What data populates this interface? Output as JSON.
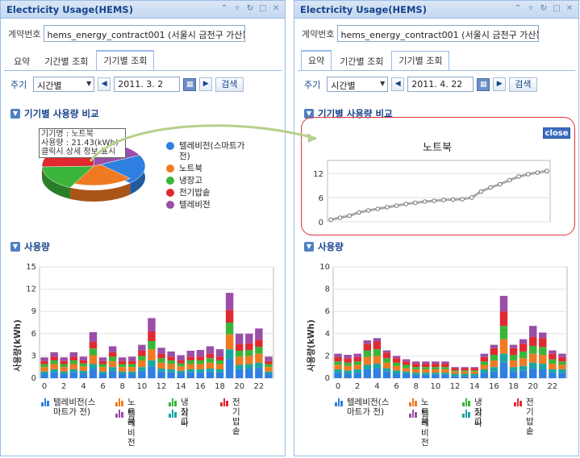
{
  "colors": {
    "tv_smart": "#2f80e0",
    "notebook": "#f07a22",
    "fridge": "#3ab53a",
    "rice": "#e02930",
    "tv": "#9a4ea8",
    "etc": "#1aa7a2"
  },
  "left": {
    "title": "Electricity Usage(HEMS)",
    "title_icons": [
      "pin-icon",
      "collapse-icon",
      "refresh-icon",
      "maximize-icon",
      "close-icon"
    ],
    "contract_label": "계약번호",
    "contract_value": "hems_energy_contract001 (서울시 금천구 가산동 3",
    "tabs": [
      "요약",
      "기간별 조회",
      "기기별 조회"
    ],
    "active_tab": 2,
    "period_label": "주기",
    "period_value": "시간별",
    "date": "2011. 3. 2",
    "search": "검색",
    "section1": "기기별 사용량 비교",
    "tooltip": [
      "기기명 : 노트북",
      "사용량 : 21.43(kWh)",
      "클릭시 상세 정보 표시"
    ],
    "pie_legend": [
      "텔레비전(스마트가 전)",
      "노트북",
      "냉장고",
      "전기밥솥",
      "텔레비전"
    ],
    "section2": "사용량"
  },
  "right": {
    "title": "Electricity Usage(HEMS)",
    "contract_label": "계약번호",
    "contract_value": "hems_energy_contract001 (서울시 금천구 가산동 3",
    "tabs": [
      "요약",
      "기간별 조회",
      "기기별 조회"
    ],
    "active_tab": 0,
    "period_label": "주기",
    "period_value": "시간별",
    "date": "2011. 4. 22",
    "search": "검색",
    "section1": "기기별 사용량 비교",
    "popup_title": "노트북",
    "close": "close",
    "section2": "사용량"
  },
  "chart_data": [
    {
      "type": "pie",
      "title": "",
      "categories": [
        "텔레비전(스마트가 전)",
        "노트북",
        "냉장고",
        "전기밥솥",
        "텔레비전"
      ],
      "values": [
        20,
        20,
        17,
        26,
        17
      ]
    },
    {
      "type": "bar",
      "title": "",
      "ylabel": "사용량(kWh)",
      "ylim": [
        0,
        15
      ],
      "yticks": [
        0,
        3,
        6,
        9,
        12,
        15
      ],
      "x": [
        0,
        1,
        2,
        3,
        4,
        5,
        6,
        7,
        8,
        9,
        10,
        11,
        12,
        13,
        14,
        15,
        16,
        17,
        18,
        19,
        20,
        21,
        22,
        23
      ],
      "xticks": [
        0,
        2,
        4,
        6,
        8,
        10,
        12,
        14,
        16,
        18,
        20,
        22
      ],
      "series": [
        {
          "name": "텔레비전(스마트가 전)",
          "values": [
            0.6,
            0.8,
            0.6,
            0.8,
            0.7,
            1.3,
            0.6,
            1.0,
            0.6,
            0.6,
            1.0,
            1.6,
            0.9,
            0.8,
            0.7,
            0.8,
            0.8,
            0.9,
            0.8,
            2.6,
            1.2,
            1.3,
            1.4,
            0.6
          ]
        },
        {
          "name": "기타",
          "values": [
            0.3,
            0.4,
            0.3,
            0.4,
            0.3,
            0.6,
            0.3,
            0.5,
            0.3,
            0.3,
            0.5,
            0.8,
            0.4,
            0.4,
            0.3,
            0.4,
            0.4,
            0.4,
            0.4,
            1.3,
            0.6,
            0.6,
            0.7,
            0.3
          ]
        },
        {
          "name": "노트북",
          "values": [
            0.6,
            0.7,
            0.6,
            0.7,
            0.6,
            1.2,
            0.6,
            0.8,
            0.6,
            0.6,
            0.9,
            1.5,
            0.8,
            0.7,
            0.6,
            0.7,
            0.7,
            0.8,
            0.7,
            2.0,
            1.1,
            1.1,
            1.2,
            0.6
          ]
        },
        {
          "name": "냉장고",
          "values": [
            0.4,
            0.5,
            0.4,
            0.5,
            0.4,
            0.9,
            0.4,
            0.6,
            0.4,
            0.4,
            0.6,
            1.1,
            0.6,
            0.5,
            0.4,
            0.5,
            0.5,
            0.6,
            0.5,
            1.6,
            0.8,
            0.8,
            0.9,
            0.4
          ]
        },
        {
          "name": "전기밥솥",
          "values": [
            0.4,
            0.5,
            0.4,
            0.5,
            0.4,
            0.9,
            0.4,
            0.6,
            0.4,
            0.4,
            0.7,
            1.3,
            0.6,
            0.5,
            0.4,
            0.5,
            0.5,
            0.6,
            0.5,
            1.7,
            0.9,
            0.9,
            1.0,
            0.4
          ]
        },
        {
          "name": "텔레비전",
          "values": [
            0.5,
            0.6,
            0.5,
            0.6,
            0.5,
            1.3,
            0.5,
            0.8,
            0.5,
            0.6,
            0.8,
            1.8,
            0.8,
            0.7,
            0.7,
            0.8,
            0.9,
            1.0,
            1.0,
            2.3,
            1.4,
            1.3,
            1.5,
            0.6
          ]
        }
      ],
      "legend": [
        "텔레비전(스마트가 전)",
        "노트북",
        "냉장고",
        "전기밥솥",
        "텔레비전",
        "기타"
      ]
    },
    {
      "type": "line",
      "title": "노트북",
      "ylim": [
        0,
        14
      ],
      "yticks": [
        0,
        6,
        12
      ],
      "x": [
        0,
        1,
        2,
        3,
        4,
        5,
        6,
        7,
        8,
        9,
        10,
        11,
        12,
        13,
        14,
        15,
        16,
        17,
        18,
        19,
        20,
        21,
        22,
        23
      ],
      "values": [
        0.5,
        1.0,
        1.5,
        2.3,
        2.8,
        3.2,
        3.6,
        4.0,
        4.4,
        4.7,
        5.0,
        5.2,
        5.4,
        5.5,
        5.6,
        6.0,
        7.5,
        8.5,
        9.3,
        10.3,
        11.2,
        11.8,
        12.2,
        12.6
      ]
    },
    {
      "type": "bar",
      "title": "",
      "ylabel": "사용량(kWh)",
      "ylim": [
        0,
        10
      ],
      "yticks": [
        0,
        2,
        4,
        6,
        8,
        10
      ],
      "x": [
        0,
        1,
        2,
        3,
        4,
        5,
        6,
        7,
        8,
        9,
        10,
        11,
        12,
        13,
        14,
        15,
        16,
        17,
        18,
        19,
        20,
        21,
        22,
        23
      ],
      "xticks": [
        0,
        2,
        4,
        6,
        8,
        10,
        12,
        14,
        16,
        18,
        20,
        22
      ],
      "series": [
        {
          "name": "텔레비전(스마트가 전)",
          "values": [
            0.5,
            0.4,
            0.5,
            0.8,
            0.9,
            0.6,
            0.4,
            0.4,
            0.3,
            0.3,
            0.3,
            0.3,
            0.2,
            0.2,
            0.2,
            0.5,
            0.6,
            1.4,
            0.6,
            0.7,
            0.9,
            0.8,
            0.5,
            0.5
          ]
        },
        {
          "name": "기타",
          "values": [
            0.3,
            0.3,
            0.3,
            0.4,
            0.4,
            0.3,
            0.3,
            0.2,
            0.2,
            0.2,
            0.2,
            0.2,
            0.2,
            0.2,
            0.2,
            0.3,
            0.4,
            0.8,
            0.4,
            0.4,
            0.5,
            0.5,
            0.3,
            0.3
          ]
        },
        {
          "name": "노트북",
          "values": [
            0.4,
            0.4,
            0.4,
            0.7,
            0.7,
            0.5,
            0.4,
            0.3,
            0.3,
            0.3,
            0.3,
            0.3,
            0.2,
            0.2,
            0.2,
            0.4,
            0.6,
            1.3,
            0.6,
            0.7,
            0.8,
            0.8,
            0.5,
            0.4
          ]
        },
        {
          "name": "냉장고",
          "values": [
            0.3,
            0.3,
            0.3,
            0.6,
            0.6,
            0.4,
            0.3,
            0.3,
            0.2,
            0.2,
            0.2,
            0.2,
            0.1,
            0.1,
            0.1,
            0.3,
            0.5,
            1.2,
            0.5,
            0.6,
            0.7,
            0.7,
            0.4,
            0.3
          ]
        },
        {
          "name": "전기밥솥",
          "values": [
            0.4,
            0.4,
            0.4,
            0.6,
            0.7,
            0.5,
            0.4,
            0.3,
            0.3,
            0.3,
            0.3,
            0.3,
            0.2,
            0.2,
            0.2,
            0.4,
            0.6,
            1.3,
            0.6,
            0.7,
            0.8,
            0.8,
            0.5,
            0.4
          ]
        },
        {
          "name": "텔레비전",
          "values": [
            0.3,
            0.3,
            0.3,
            0.3,
            0.3,
            0.2,
            0.2,
            0.2,
            0.2,
            0.2,
            0.2,
            0.2,
            0.1,
            0.1,
            0.1,
            0.3,
            0.3,
            1.4,
            0.3,
            0.4,
            1.0,
            0.5,
            0.3,
            0.3
          ]
        }
      ],
      "legend": [
        "텔레비전(스마트가 전)",
        "노트북",
        "냉장고",
        "전기밥솥",
        "텔레비전",
        "기타"
      ]
    }
  ]
}
